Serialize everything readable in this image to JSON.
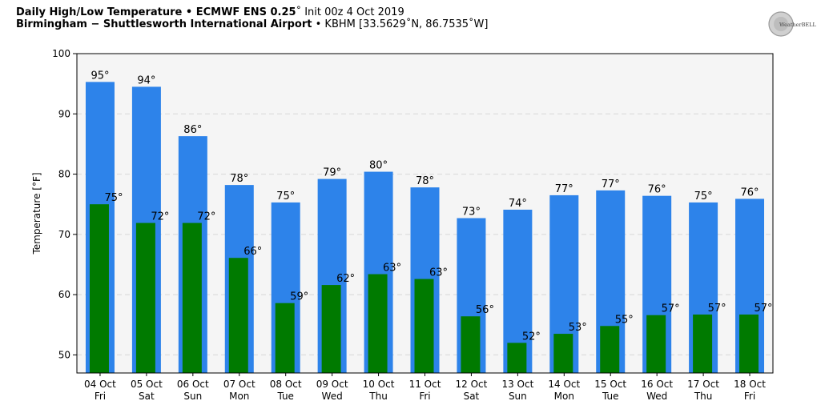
{
  "header": {
    "line1_bold": "Daily High/Low Temperature • ECMWF ENS 0.25",
    "line1_deg": "˚",
    "line1_rest": " Init 00z 4 Oct 2019",
    "line2_bold": "Birmingham − Shuttlesworth International Airport",
    "line2_rest": " • KBHM [33.5629˚N, 86.7535˚W]"
  },
  "logo": {
    "text": "WeatherBELL"
  },
  "colors": {
    "high": "#2d83ea",
    "low": "#007a00",
    "plot_bg": "#f5f5f5",
    "grid": "#d8d8d8"
  },
  "chart_data": {
    "type": "bar",
    "title": "",
    "ylabel": "Temperature [°F]",
    "ylim": [
      47,
      100
    ],
    "yticks": [
      50,
      60,
      70,
      80,
      90,
      100
    ],
    "grid": true,
    "categories": [
      [
        "04 Oct",
        "Fri"
      ],
      [
        "05 Oct",
        "Sat"
      ],
      [
        "06 Oct",
        "Sun"
      ],
      [
        "07 Oct",
        "Mon"
      ],
      [
        "08 Oct",
        "Tue"
      ],
      [
        "09 Oct",
        "Wed"
      ],
      [
        "10 Oct",
        "Thu"
      ],
      [
        "11 Oct",
        "Fri"
      ],
      [
        "12 Oct",
        "Sat"
      ],
      [
        "13 Oct",
        "Sun"
      ],
      [
        "14 Oct",
        "Mon"
      ],
      [
        "15 Oct",
        "Tue"
      ],
      [
        "16 Oct",
        "Wed"
      ],
      [
        "17 Oct",
        "Thu"
      ],
      [
        "18 Oct",
        "Fri"
      ]
    ],
    "series": [
      {
        "key": "high",
        "values": [
          95.3,
          94.5,
          86.3,
          78.2,
          75.3,
          79.2,
          80.4,
          77.8,
          72.7,
          74.1,
          76.5,
          77.3,
          76.4,
          75.3,
          75.9
        ],
        "labels": [
          "95°",
          "94°",
          "86°",
          "78°",
          "75°",
          "79°",
          "80°",
          "78°",
          "73°",
          "74°",
          "77°",
          "77°",
          "76°",
          "75°",
          "76°"
        ]
      },
      {
        "key": "low",
        "values": [
          75.0,
          71.9,
          71.9,
          66.1,
          58.6,
          61.6,
          63.4,
          62.6,
          56.4,
          52.0,
          53.5,
          54.8,
          56.6,
          56.7,
          56.7
        ],
        "labels": [
          "75°",
          "72°",
          "72°",
          "66°",
          "59°",
          "62°",
          "63°",
          "63°",
          "56°",
          "52°",
          "53°",
          "55°",
          "57°",
          "57°",
          "57°"
        ]
      }
    ]
  }
}
